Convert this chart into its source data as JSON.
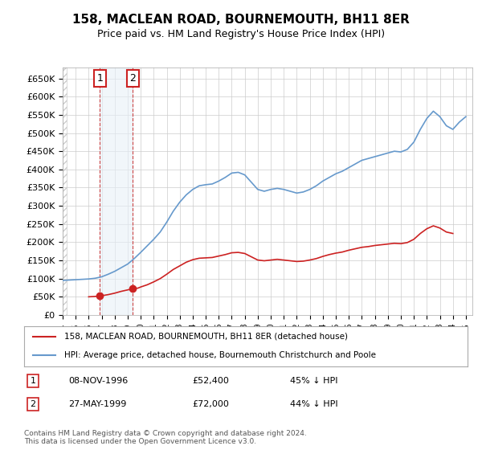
{
  "title": "158, MACLEAN ROAD, BOURNEMOUTH, BH11 8ER",
  "subtitle": "Price paid vs. HM Land Registry's House Price Index (HPI)",
  "ylabel": "",
  "ylim": [
    0,
    680000
  ],
  "yticks": [
    0,
    50000,
    100000,
    150000,
    200000,
    250000,
    300000,
    350000,
    400000,
    450000,
    500000,
    550000,
    600000,
    650000
  ],
  "xlim_start": 1994.0,
  "xlim_end": 2025.5,
  "hpi_color": "#6699cc",
  "price_color": "#cc2222",
  "dot1_color": "#cc2222",
  "dot2_color": "#cc2222",
  "transaction1": {
    "date_num": 1996.86,
    "price": 52400,
    "label": "1"
  },
  "transaction2": {
    "date_num": 1999.4,
    "price": 72000,
    "label": "2"
  },
  "legend_line1": "158, MACLEAN ROAD, BOURNEMOUTH, BH11 8ER (detached house)",
  "legend_line2": "HPI: Average price, detached house, Bournemouth Christchurch and Poole",
  "table_row1": [
    "1",
    "08-NOV-1996",
    "£52,400",
    "45% ↓ HPI"
  ],
  "table_row2": [
    "2",
    "27-MAY-1999",
    "£72,000",
    "44% ↓ HPI"
  ],
  "footer": "Contains HM Land Registry data © Crown copyright and database right 2024.\nThis data is licensed under the Open Government Licence v3.0.",
  "background_color": "#ffffff",
  "grid_color": "#cccccc",
  "hatch_color": "#dddddd",
  "shade1_color": "#e8f0f8",
  "vline_color": "#cc4444"
}
